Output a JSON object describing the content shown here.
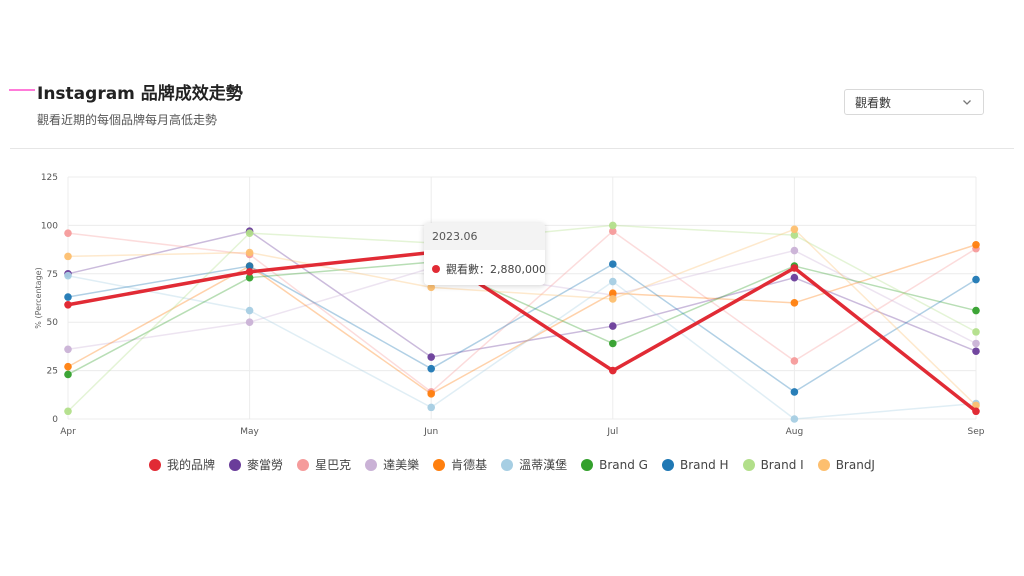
{
  "header": {
    "title": "Instagram 品牌成效走勢",
    "subtitle": "觀看近期的每個品牌每月高低走勢",
    "accent_color": "#ff7bd9"
  },
  "metric_select": {
    "value": "觀看數",
    "icon": "chevron-down-icon"
  },
  "tooltip": {
    "date": "2023.06",
    "label": "觀看數：2,880,000",
    "color": "#e12b35"
  },
  "chart_data": {
    "type": "line",
    "categories": [
      "Apr",
      "May",
      "Jun",
      "Jul",
      "Aug",
      "Sep"
    ],
    "ylabel": "% (Percentage)",
    "ylim": [
      0,
      125
    ],
    "yticks": [
      0,
      25,
      50,
      75,
      100,
      125
    ],
    "grid": true,
    "legend_position": "bottom",
    "highlight_series": "我的品牌",
    "series": [
      {
        "name": "我的品牌",
        "color": "#e12b35",
        "values": [
          59,
          76,
          86,
          25,
          78,
          4
        ]
      },
      {
        "name": "麥當勞",
        "color": "#6a3d9a",
        "values": [
          75,
          97,
          32,
          48,
          73,
          35
        ]
      },
      {
        "name": "星巴克",
        "color": "#f59b9b",
        "values": [
          96,
          85,
          14,
          97,
          30,
          88
        ]
      },
      {
        "name": "達美樂",
        "color": "#cab2d6",
        "values": [
          36,
          50,
          78,
          64,
          87,
          39
        ]
      },
      {
        "name": "肯德基",
        "color": "#ff7f0e",
        "values": [
          27,
          79,
          13,
          65,
          60,
          90
        ]
      },
      {
        "name": "溫蒂漢堡",
        "color": "#a6cee3",
        "values": [
          74,
          56,
          6,
          71,
          0,
          8
        ]
      },
      {
        "name": "Brand G",
        "color": "#33a02c",
        "values": [
          23,
          73,
          81,
          39,
          79,
          56
        ]
      },
      {
        "name": "Brand H",
        "color": "#1f78b4",
        "values": [
          63,
          79,
          26,
          80,
          14,
          72
        ]
      },
      {
        "name": "Brand I",
        "color": "#b2df8a",
        "values": [
          4,
          96,
          91,
          100,
          95,
          45
        ]
      },
      {
        "name": "BrandJ",
        "color": "#fdbf6f",
        "values": [
          84,
          86,
          68,
          62,
          98,
          7
        ]
      }
    ]
  }
}
